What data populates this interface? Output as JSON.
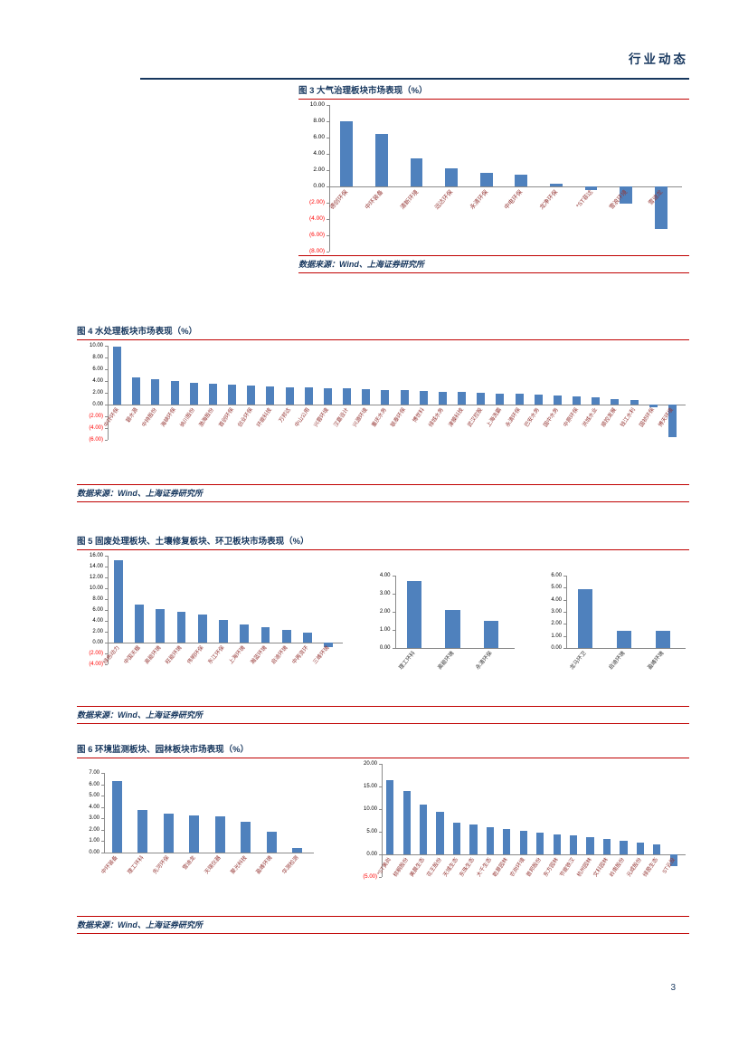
{
  "header": {
    "title": "行业动态"
  },
  "page_number": "3",
  "source_label": "数据来源：Wind、上海证券研究所",
  "colors": {
    "bar": "#4F81BD",
    "navy": "#17375E",
    "rule_red": "#C00000",
    "tick_negative": "#FF0000",
    "category_label": "#953735",
    "category_label_dark": "#333333"
  },
  "figures": [
    {
      "title": "图 3 大气治理板块市场表现（%）"
    },
    {
      "title": "图 4 水处理板块市场表现（%）"
    },
    {
      "title": "图 5 固废处理板块、土壤修复板块、环卫板块市场表现（%）"
    },
    {
      "title": "图 6 环境监测板块、园林板块市场表现（%）"
    }
  ],
  "chart_data": [
    {
      "type": "bar",
      "name": "大气治理板块",
      "categories": [
        "德创环保",
        "中环装备",
        "清新环境",
        "远达环保",
        "永清环保",
        "中电环保",
        "龙净环保",
        "*ST菲达",
        "雪浪环境",
        "雪迪龙"
      ],
      "values": [
        8.0,
        6.5,
        3.5,
        2.2,
        1.7,
        1.4,
        0.3,
        -0.4,
        -2.1,
        -5.2
      ],
      "ylim": [
        -8,
        10
      ],
      "ytick_step": 2,
      "grid": false,
      "legend": false
    },
    {
      "type": "bar",
      "name": "水处理板块",
      "categories": [
        "中环环保",
        "碧水源",
        "中持股份",
        "海峡环保",
        "纳川股份",
        "渤海股份",
        "首创环保",
        "创业环保",
        "环能科技",
        "万邦达",
        "中山公用",
        "兴蓉环境",
        "汉嘉设计",
        "兴源环境",
        "重庆水务",
        "联泰环保",
        "博世科",
        "绿城水务",
        "津膜科技",
        "武汉控股",
        "上海洗霸",
        "永清环保",
        "巴安水务",
        "国中水务",
        "中原环保",
        "洪城水业",
        "顺控发展",
        "钱江水利",
        "国祯环保",
        "博天环境"
      ],
      "values": [
        9.8,
        4.6,
        4.3,
        4.0,
        3.7,
        3.5,
        3.4,
        3.2,
        3.1,
        3.0,
        2.9,
        2.8,
        2.7,
        2.6,
        2.5,
        2.4,
        2.3,
        2.2,
        2.1,
        2.0,
        1.9,
        1.8,
        1.7,
        1.5,
        1.4,
        1.2,
        1.0,
        0.7,
        -0.5,
        -5.6
      ],
      "ylim": [
        -6,
        10
      ],
      "ytick_step": 2,
      "grid": false,
      "legend": false
    },
    {
      "type": "bar",
      "name": "固废处理板块",
      "categories": [
        "绿色动力",
        "中国天楹",
        "高能环境",
        "旺能环境",
        "伟明环保",
        "东江环保",
        "上海环境",
        "瀚蓝环境",
        "启迪环境",
        "中再资环",
        "三峰环境"
      ],
      "values": [
        15.2,
        7.0,
        6.2,
        5.6,
        5.2,
        4.1,
        3.4,
        2.9,
        2.4,
        1.9,
        -0.9
      ],
      "ylim": [
        -4,
        16
      ],
      "ytick_step": 2,
      "grid": false,
      "legend": false
    },
    {
      "type": "bar",
      "name": "土壤修复板块",
      "categories": [
        "理工环科",
        "高能环境",
        "永清环保"
      ],
      "values": [
        3.7,
        2.1,
        1.5
      ],
      "ylim": [
        0,
        4
      ],
      "ytick_step": 1,
      "grid": false,
      "legend": false
    },
    {
      "type": "bar",
      "name": "环卫板块",
      "categories": [
        "龙马环卫",
        "启迪环境",
        "盈峰环境"
      ],
      "values": [
        4.9,
        1.4,
        1.4
      ],
      "ylim": [
        0,
        6
      ],
      "ytick_step": 1,
      "grid": false,
      "legend": false
    },
    {
      "type": "bar",
      "name": "环境监测板块",
      "categories": [
        "中环装备",
        "理工环科",
        "先河环保",
        "雪迪龙",
        "天瑞仪器",
        "聚光科技",
        "盈峰环境",
        "华测检测"
      ],
      "values": [
        6.3,
        3.7,
        3.4,
        3.3,
        3.2,
        2.7,
        1.8,
        0.4
      ],
      "ylim": [
        0,
        7
      ],
      "ytick_step": 1,
      "grid": false,
      "legend": false
    },
    {
      "type": "bar",
      "name": "园林板块",
      "categories": [
        "*ST美尚",
        "棕榈股份",
        "美晨生态",
        "花王股份",
        "天域生态",
        "东珠生态",
        "大千生态",
        "乾景园林",
        "农尚环境",
        "普邦股份",
        "东方园林",
        "节能铁汉",
        "杭州园林",
        "文科园林",
        "岭南股份",
        "元成股份",
        "绿茵生态",
        "ST云投"
      ],
      "values": [
        16.5,
        14.0,
        11.0,
        9.4,
        7.1,
        6.6,
        6.1,
        5.6,
        5.2,
        4.8,
        4.5,
        4.2,
        3.9,
        3.5,
        3.1,
        2.6,
        2.2,
        -2.6
      ],
      "ylim": [
        -5,
        20
      ],
      "ytick_step": 5,
      "grid": false,
      "legend": false
    }
  ]
}
